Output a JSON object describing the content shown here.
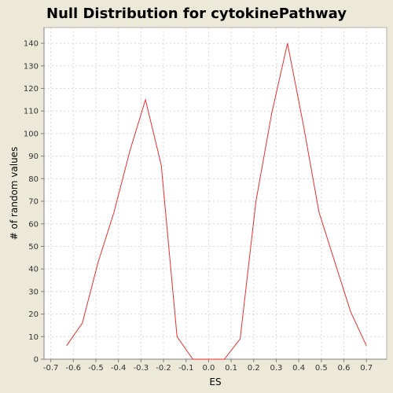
{
  "colors": {
    "background": "#ece9d8",
    "plot_background": "#ffffff",
    "series_line": "#e8302f",
    "grid": "#d8d8d8",
    "axis": "#808080"
  },
  "chart_data": {
    "type": "line",
    "title": "Null Distribution for cytokinePathway",
    "xlabel": "ES",
    "ylabel": "# of random values",
    "xlim": [
      -0.73,
      0.79
    ],
    "ylim": [
      0,
      147
    ],
    "xticks": [
      -0.7,
      -0.6,
      -0.5,
      -0.4,
      -0.3,
      -0.2,
      -0.1,
      0.0,
      0.1,
      0.2,
      0.3,
      0.4,
      0.5,
      0.6,
      0.7
    ],
    "xtick_labels": [
      "-0.7",
      "-0.6",
      "-0.5",
      "-0.4",
      "-0.3",
      "-0.2",
      "-0.1",
      "0.0",
      "0.1",
      "0.2",
      "0.3",
      "0.4",
      "0.5",
      "0.6",
      "0.7"
    ],
    "yticks": [
      0,
      10,
      20,
      30,
      40,
      50,
      60,
      70,
      80,
      90,
      100,
      110,
      120,
      130,
      140
    ],
    "grid": true,
    "series": [
      {
        "x": [
          -0.63,
          -0.56,
          -0.49,
          -0.42,
          -0.35,
          -0.28,
          -0.21,
          -0.14,
          -0.07,
          0.0,
          0.07,
          0.14,
          0.21,
          0.28,
          0.35,
          0.42,
          0.49,
          0.56,
          0.63,
          0.7
        ],
        "y": [
          6,
          16,
          43,
          65,
          92,
          115,
          86,
          10,
          0,
          0,
          0,
          9,
          70,
          109,
          140,
          104,
          65,
          43,
          21,
          6
        ]
      }
    ]
  }
}
